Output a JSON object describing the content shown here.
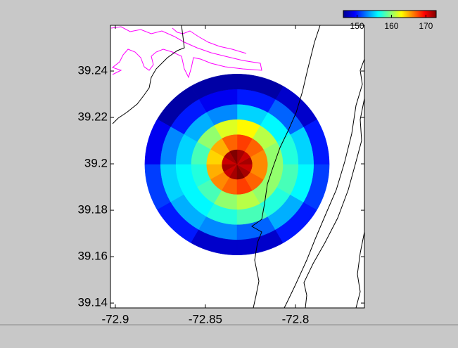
{
  "chart_data": {
    "type": "heatmap",
    "xlim": [
      -72.9027,
      -72.7617
    ],
    "ylim": [
      39.1379,
      39.2597
    ],
    "xticks": [
      -72.9,
      -72.85,
      -72.8
    ],
    "yticks": [
      39.14,
      39.16,
      39.18,
      39.2,
      39.22,
      39.24
    ],
    "center": [
      -72.8324,
      39.1997
    ],
    "radius": [
      0.0512,
      0.039
    ],
    "values": [
      [
        172,
        171,
        172,
        173,
        172,
        171,
        172,
        171,
        172,
        173,
        172,
        171
      ],
      [
        166,
        167,
        168,
        167,
        165,
        164,
        165,
        166,
        167,
        168,
        167,
        166
      ],
      [
        160,
        161,
        163,
        162,
        160,
        158,
        157,
        158,
        160,
        161,
        160,
        160
      ],
      [
        157,
        156,
        155,
        153,
        154,
        155,
        156,
        156,
        157,
        158,
        157,
        158
      ],
      [
        155,
        152,
        150,
        149,
        150,
        153,
        155,
        154,
        153,
        152,
        154,
        156
      ],
      [
        150,
        148,
        147,
        147,
        147,
        149,
        151,
        150,
        148,
        148,
        150,
        151
      ]
    ],
    "colormap": "jet",
    "clim": [
      146,
      173
    ],
    "cticks": [
      150,
      160,
      170
    ]
  }
}
